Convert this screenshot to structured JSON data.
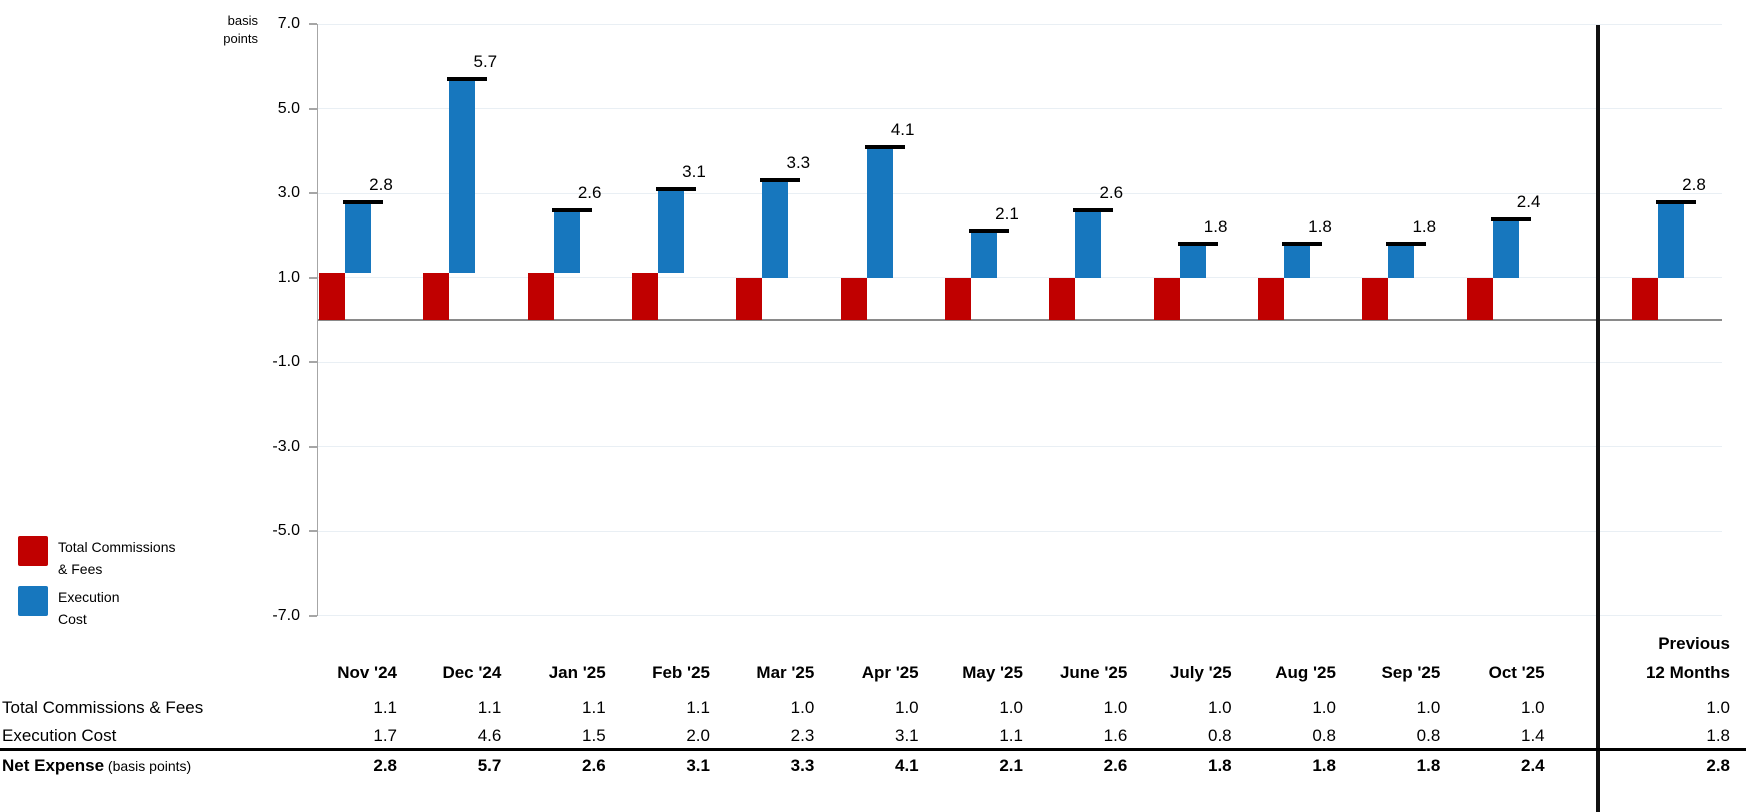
{
  "chart_data": {
    "type": "bar",
    "subtype": "stacked-columns-with-total-cap",
    "unit_label_lines": [
      "basis",
      "points"
    ],
    "categories": [
      "Nov '24",
      "Dec '24",
      "Jan '25",
      "Feb '25",
      "Mar '25",
      "Apr '25",
      "May '25",
      "June '25",
      "July '25",
      "Aug '25",
      "Sep '25",
      "Oct '25",
      "Previous 12 Months"
    ],
    "series": [
      {
        "name": "Total Commissions & Fees",
        "color": "#c00000",
        "values": [
          1.1,
          1.1,
          1.1,
          1.1,
          1.0,
          1.0,
          1.0,
          1.0,
          1.0,
          1.0,
          1.0,
          1.0,
          1.0
        ]
      },
      {
        "name": "Execution Cost",
        "color": "#1777be",
        "values": [
          1.7,
          4.6,
          1.5,
          2.0,
          2.3,
          3.1,
          1.1,
          1.6,
          0.8,
          0.8,
          0.8,
          1.4,
          1.8
        ]
      }
    ],
    "totals": {
      "name": "Net Expense",
      "unit_suffix": "(basis points)",
      "values": [
        2.8,
        5.7,
        2.6,
        3.1,
        3.3,
        4.1,
        2.1,
        2.6,
        1.8,
        1.8,
        1.8,
        2.4,
        2.8
      ]
    },
    "ylim": [
      -7.0,
      7.0
    ],
    "yticks": [
      7.0,
      5.0,
      3.0,
      1.0,
      -1.0,
      -3.0,
      -5.0,
      -7.0
    ],
    "grid": "horizontal-on",
    "legend_position": "bottom-left",
    "separator_before_category_index": 12
  },
  "legend": {
    "items": [
      {
        "label_lines": [
          "Total Commissions",
          "& Fees"
        ],
        "color": "#c00000"
      },
      {
        "label_lines": [
          "Execution",
          "Cost"
        ],
        "color": "#1777be"
      }
    ]
  },
  "table": {
    "month_headers": [
      "Nov '24",
      "Dec '24",
      "Jan '25",
      "Feb '25",
      "Mar '25",
      "Apr '25",
      "May '25",
      "June '25",
      "July '25",
      "Aug '25",
      "Sep '25",
      "Oct '25"
    ],
    "last_column_header_lines": [
      "Previous",
      "12 Months"
    ],
    "row_labels": {
      "commissions": "Total Commissions & Fees",
      "execution": "Execution Cost",
      "net_bold": "Net Expense",
      "net_small": " (basis points)"
    }
  },
  "colors": {
    "commissions_red": "#c00000",
    "execution_blue": "#1777be",
    "gridline": "#e9eff4",
    "zero_axis": "#8a8a8a",
    "axis_gray": "#a6a6a6",
    "cap_black": "#000000"
  }
}
